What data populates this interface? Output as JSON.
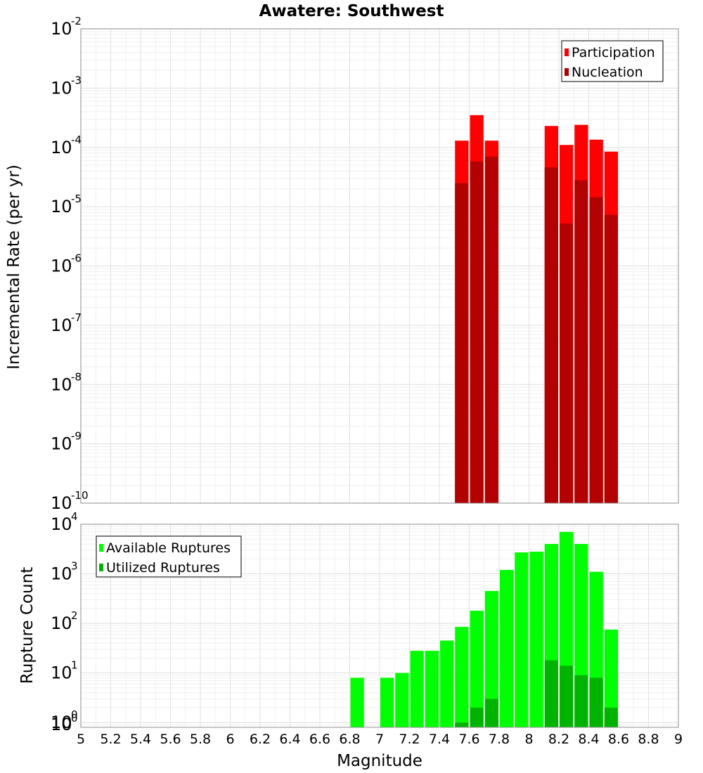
{
  "chart_data": [
    {
      "type": "bar",
      "title": "Awatere: Southwest",
      "ylabel": "Incremental Rate (per yr)",
      "xlabel": "",
      "xlim": [
        5,
        9
      ],
      "ylim": [
        1e-10,
        0.01
      ],
      "yscale": "log",
      "grid": true,
      "legend_position": "top-right",
      "series": [
        {
          "name": "Participation",
          "color": "#ff0000",
          "points": [
            [
              7.55,
              0.00013
            ],
            [
              7.65,
              0.00035
            ],
            [
              7.75,
              0.00013
            ],
            [
              8.15,
              0.00023
            ],
            [
              8.25,
              0.00011
            ],
            [
              8.35,
              0.00024
            ],
            [
              8.45,
              0.000135
            ],
            [
              8.55,
              8.5e-05
            ]
          ]
        },
        {
          "name": "Nucleation",
          "color": "#b30000",
          "points": [
            [
              7.55,
              2.5e-05
            ],
            [
              7.65,
              5.8e-05
            ],
            [
              7.75,
              7e-05
            ],
            [
              8.15,
              4.6e-05
            ],
            [
              8.25,
              5.2e-06
            ],
            [
              8.35,
              2.8e-05
            ],
            [
              8.45,
              1.45e-05
            ],
            [
              8.55,
              7.3e-06
            ]
          ]
        }
      ]
    },
    {
      "type": "bar",
      "xlabel": "Magnitude",
      "ylabel": "Rupture Count",
      "xlim": [
        5,
        9
      ],
      "ylim": [
        0.8,
        10000
      ],
      "yscale": "log",
      "x_ticks": [
        "5",
        "5.2",
        "5.4",
        "5.6",
        "5.8",
        "6",
        "6.2",
        "6.4",
        "6.6",
        "6.8",
        "7",
        "7.2",
        "7.4",
        "7.6",
        "7.8",
        "8",
        "8.2",
        "8.4",
        "8.6",
        "8.8",
        "9"
      ],
      "grid": true,
      "legend_position": "top-left",
      "series": [
        {
          "name": "Available Ruptures",
          "color": "#00ff00",
          "points": [
            [
              6.85,
              8
            ],
            [
              7.05,
              8
            ],
            [
              7.15,
              10
            ],
            [
              7.25,
              28
            ],
            [
              7.35,
              28
            ],
            [
              7.45,
              45
            ],
            [
              7.55,
              85
            ],
            [
              7.65,
              180
            ],
            [
              7.75,
              450
            ],
            [
              7.85,
              1200
            ],
            [
              7.95,
              2700
            ],
            [
              8.05,
              2800
            ],
            [
              8.15,
              4000
            ],
            [
              8.25,
              7000
            ],
            [
              8.35,
              4000
            ],
            [
              8.45,
              1100
            ],
            [
              8.55,
              75
            ]
          ]
        },
        {
          "name": "Utilized Ruptures",
          "color": "#00b300",
          "points": [
            [
              7.55,
              1
            ],
            [
              7.65,
              2
            ],
            [
              7.75,
              3
            ],
            [
              8.15,
              18
            ],
            [
              8.25,
              14
            ],
            [
              8.35,
              9
            ],
            [
              8.45,
              8
            ],
            [
              8.55,
              2
            ]
          ]
        }
      ]
    }
  ]
}
